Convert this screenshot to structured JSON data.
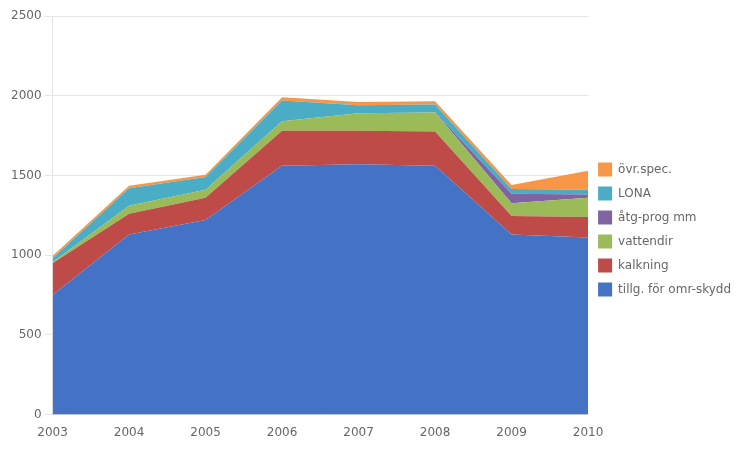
{
  "chart_data": {
    "type": "area",
    "stacked": true,
    "x": [
      2003,
      2004,
      2005,
      2006,
      2007,
      2008,
      2009,
      2010
    ],
    "xlim": [
      2003,
      2010
    ],
    "xticks": [
      2003,
      2004,
      2005,
      2006,
      2007,
      2008,
      2009,
      2010
    ],
    "ylim": [
      0,
      2500
    ],
    "yticks": [
      0,
      500,
      1000,
      1500,
      2000,
      2500
    ],
    "grid": "y",
    "legend": "right",
    "series": [
      {
        "name": "tillg. för omr-skydd",
        "color": "#4472C4",
        "values": [
          750,
          1130,
          1220,
          1560,
          1570,
          1560,
          1130,
          1110
        ]
      },
      {
        "name": "kalkning",
        "color": "#BE4B48",
        "values": [
          200,
          130,
          140,
          220,
          210,
          215,
          115,
          130
        ]
      },
      {
        "name": "vattendir",
        "color": "#9BBB59",
        "values": [
          5,
          50,
          50,
          60,
          110,
          120,
          80,
          120
        ]
      },
      {
        "name": "åtg-prog mm",
        "color": "#8064A2",
        "values": [
          0,
          0,
          0,
          0,
          0,
          0,
          60,
          20
        ]
      },
      {
        "name": "LONA",
        "color": "#4BACC6",
        "values": [
          25,
          110,
          80,
          130,
          50,
          50,
          30,
          30
        ]
      },
      {
        "name": "övr.spec.",
        "color": "#F79646",
        "values": [
          15,
          15,
          15,
          20,
          20,
          20,
          25,
          120
        ]
      }
    ]
  }
}
